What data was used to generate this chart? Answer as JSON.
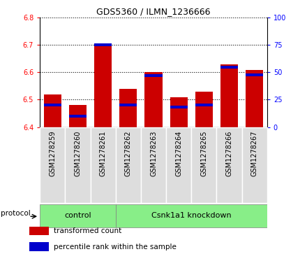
{
  "title": "GDS5360 / ILMN_1236666",
  "samples": [
    "GSM1278259",
    "GSM1278260",
    "GSM1278261",
    "GSM1278262",
    "GSM1278263",
    "GSM1278264",
    "GSM1278265",
    "GSM1278266",
    "GSM1278267"
  ],
  "transformed_counts": [
    6.52,
    6.48,
    6.7,
    6.54,
    6.6,
    6.51,
    6.53,
    6.63,
    6.61
  ],
  "percentile_ranks": [
    20,
    10,
    75,
    20,
    47,
    18,
    20,
    55,
    48
  ],
  "ylim_left": [
    6.4,
    6.8
  ],
  "ylim_right": [
    0,
    100
  ],
  "yticks_left": [
    6.4,
    6.5,
    6.6,
    6.7,
    6.8
  ],
  "yticks_right": [
    0,
    25,
    50,
    75,
    100
  ],
  "bar_color_red": "#cc0000",
  "bar_color_blue": "#0000cc",
  "bar_bottom": 6.4,
  "control_label": "control",
  "knockdown_label": "Csnk1a1 knockdown",
  "protocol_label": "protocol",
  "legend_red": "transformed count",
  "legend_blue": "percentile rank within the sample",
  "group_color": "#88ee88",
  "box_color": "#dddddd",
  "plot_bg": "#ffffff",
  "bar_width": 0.7,
  "n_control": 3,
  "title_fontsize": 9,
  "tick_fontsize": 7,
  "label_fontsize": 7,
  "group_fontsize": 8
}
